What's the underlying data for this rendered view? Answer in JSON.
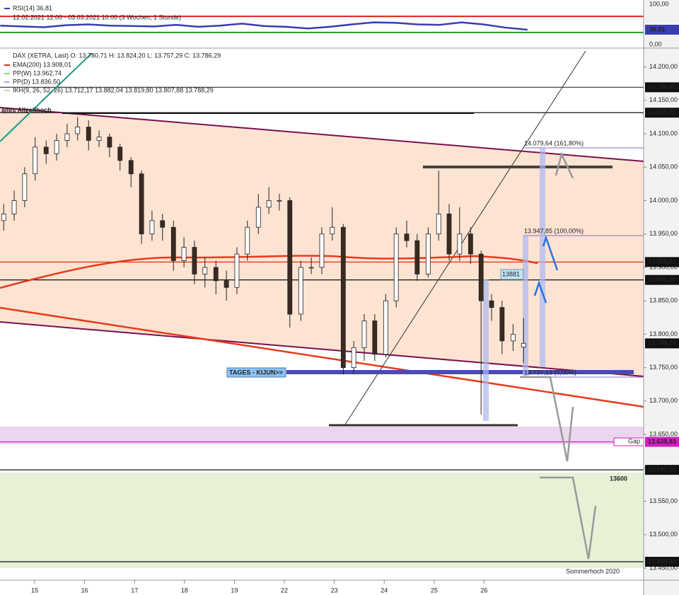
{
  "chart_data": [
    {
      "type": "line",
      "title": "RSI(14) 36,81",
      "subtitle": "12.02.2021 12:00 - 03.03.2021 10:00 (3 Wochen, 1 Stunde)",
      "x": [
        -0.69,
        -0.25,
        0.19,
        0.63,
        1.07,
        1.51,
        1.95,
        2.39,
        2.83,
        3.27,
        3.71,
        4.15,
        4.59,
        5.03,
        5.47,
        5.91,
        6.35,
        6.79,
        7.23,
        7.67,
        8.11,
        8.55,
        8.99,
        9.43,
        9.87
      ],
      "series": [
        {
          "name": "RSI(14)",
          "color": "#3a3db0",
          "values": [
            47,
            45,
            43,
            48,
            50,
            47,
            46,
            45,
            49,
            44,
            47,
            52,
            46,
            44,
            40,
            44,
            50,
            55,
            54,
            50,
            49,
            55,
            50,
            42,
            36.81
          ]
        }
      ],
      "last_label": "36,81",
      "xlim": [
        -0.694,
        12.195
      ],
      "ylim": [
        0,
        100
      ],
      "yticks": [
        {
          "value": 100,
          "label": "100,00"
        },
        {
          "value": 0,
          "label": "0,00"
        }
      ],
      "levels": [
        {
          "value": 70,
          "color": "#e02020"
        },
        {
          "value": 30,
          "color": "#20a020"
        }
      ]
    },
    {
      "type": "candlestick",
      "title": "DAX (XETRA, Last)  O: 13.780,71  H: 13.824,20  L: 13.757,29  C: 13.786,29",
      "legend": [
        {
          "label": "EMA(200)  13.908,01",
          "color": "#e03010"
        },
        {
          "label": "PP(W)  13.962,74",
          "color": "#9ad28a"
        },
        {
          "label": "PP(D)  13.836,50",
          "color": "#9ab6e8"
        },
        {
          "label": "IKH(9, 26, 52, 26)  13.712,17  13.882,04  13.819,80  13.807,88  13.788,29",
          "color": "#cccccc"
        }
      ],
      "x": [
        -0.62,
        -0.41,
        -0.2,
        0.01,
        0.23,
        0.44,
        0.65,
        0.86,
        1.08,
        1.29,
        1.5,
        1.71,
        1.93,
        2.14,
        2.35,
        2.56,
        2.78,
        2.99,
        3.2,
        3.41,
        3.63,
        3.84,
        4.05,
        4.26,
        4.48,
        4.69,
        4.9,
        5.11,
        5.33,
        5.54,
        5.75,
        5.96,
        6.18,
        6.39,
        6.6,
        6.81,
        7.03,
        7.24,
        7.45,
        7.66,
        7.88,
        8.09,
        8.3,
        8.51,
        8.73,
        8.94,
        9.15,
        9.36,
        9.58,
        9.79
      ],
      "open": [
        13970,
        13980,
        14000,
        14040,
        14080,
        14070,
        14090,
        14100,
        14110,
        14090,
        14095,
        14080,
        14060,
        14040,
        13950,
        13970,
        13960,
        13910,
        13930,
        13890,
        13900,
        13880,
        13870,
        13920,
        13960,
        13990,
        14000,
        14000,
        13830,
        13900,
        13900,
        13950,
        13960,
        13750,
        13780,
        13820,
        13770,
        13850,
        13950,
        13940,
        13890,
        13950,
        13980,
        13920,
        13950,
        13920,
        13850,
        13840,
        13790,
        13780.71
      ],
      "high": [
        13995,
        14015,
        14050,
        14095,
        14090,
        14100,
        14115,
        14125,
        14120,
        14105,
        14100,
        14085,
        14065,
        14045,
        13985,
        13980,
        13970,
        13945,
        13940,
        13915,
        13910,
        13895,
        13930,
        13970,
        14010,
        14020,
        14010,
        14005,
        13910,
        13915,
        13960,
        13990,
        13965,
        13790,
        13830,
        13830,
        13860,
        13960,
        13970,
        13950,
        13960,
        14045,
        13995,
        13990,
        13960,
        13925,
        13860,
        13850,
        13815,
        13824.2
      ],
      "low": [
        13955,
        13970,
        13990,
        14030,
        14055,
        14060,
        14080,
        14090,
        14075,
        14080,
        14065,
        14045,
        14020,
        13935,
        13940,
        13940,
        13895,
        13900,
        13875,
        13870,
        13860,
        13850,
        13860,
        13910,
        13950,
        13980,
        13985,
        13810,
        13820,
        13890,
        13890,
        13940,
        13740,
        13740,
        13760,
        13760,
        13765,
        13840,
        13930,
        13880,
        13885,
        13940,
        13910,
        13910,
        13905,
        13680,
        13820,
        13770,
        13775,
        13757.29
      ],
      "close": [
        13980,
        14000,
        14040,
        14080,
        14070,
        14090,
        14100,
        14110,
        14090,
        14095,
        14080,
        14060,
        14040,
        13950,
        13970,
        13960,
        13910,
        13930,
        13890,
        13900,
        13880,
        13870,
        13920,
        13960,
        13990,
        14000,
        14000,
        13830,
        13900,
        13900,
        13950,
        13960,
        13750,
        13780,
        13820,
        13770,
        13850,
        13950,
        13940,
        13890,
        13950,
        13980,
        13920,
        13950,
        13920,
        13850,
        13840,
        13790,
        13800,
        13786.29
      ],
      "up_color": "#ffffff",
      "down_color": "#3b2a20",
      "xlim": [
        -0.694,
        12.195
      ],
      "ylim": [
        13432,
        14226
      ],
      "xticks": [
        {
          "value": 0,
          "label": "15"
        },
        {
          "value": 1,
          "label": "16"
        },
        {
          "value": 2,
          "label": "17"
        },
        {
          "value": 3,
          "label": "18"
        },
        {
          "value": 4,
          "label": "19"
        },
        {
          "value": 5,
          "label": "22"
        },
        {
          "value": 6,
          "label": "23"
        },
        {
          "value": 7,
          "label": "24"
        },
        {
          "value": 8,
          "label": "25"
        },
        {
          "value": 9,
          "label": "26"
        }
      ],
      "yticks": [
        {
          "value": 14200,
          "label": "14.200,00"
        },
        {
          "value": 14150,
          "label": "14.150,00"
        },
        {
          "value": 14100,
          "label": "14.100,00"
        },
        {
          "value": 14050,
          "label": "14.050,00"
        },
        {
          "value": 14000,
          "label": "14.000,00"
        },
        {
          "value": 13950,
          "label": "13.950,00"
        },
        {
          "value": 13900,
          "label": "13.900,00"
        },
        {
          "value": 13850,
          "label": "13.850,00"
        },
        {
          "value": 13800,
          "label": "13.800,00"
        },
        {
          "value": 13750,
          "label": "13.750,00"
        },
        {
          "value": 13700,
          "label": "13.700,00"
        },
        {
          "value": 13650,
          "label": "13.650,00"
        },
        {
          "value": 13600,
          "label": "13.600,00"
        },
        {
          "value": 13550,
          "label": "13.550,00"
        },
        {
          "value": 13500,
          "label": "13.500,00"
        },
        {
          "value": 13450,
          "label": "13.450,00"
        }
      ],
      "price_levels": [
        {
          "value": 14169.49,
          "label": "14.169,49",
          "color": "#444444",
          "box": "#111111"
        },
        {
          "value": 14131.52,
          "label": "14.131,52",
          "color": "#111111",
          "box": "#111111"
        },
        {
          "value": 13908.01,
          "label": "13.908,01",
          "color": "#e03010",
          "box": "#111111"
        },
        {
          "value": 13881.26,
          "label": "13.881,26",
          "color": "#111111",
          "box": "#111111"
        },
        {
          "value": 13786.29,
          "label": "13.786,29",
          "color": null,
          "box": "#111111"
        },
        {
          "value": 13638.93,
          "label": "13.638,93",
          "color": "#d020c0",
          "box": "#d020c0"
        },
        {
          "value": 13597,
          "label": "13.597,00",
          "color": "#111111",
          "box": "#111111"
        },
        {
          "value": 13459.49,
          "label": "13.459,49",
          "color": "#111111",
          "box": "#111111"
        }
      ],
      "annotations": [
        "altes Allzeithoch",
        "TAGES - KIJUN>>",
        "13881",
        "Gap",
        "13600",
        "Sommerhoch 2020",
        "14.079,64 (161,80%)",
        "13.947,85 (100,00%)",
        "13.737,13 (0,00%)"
      ]
    }
  ]
}
